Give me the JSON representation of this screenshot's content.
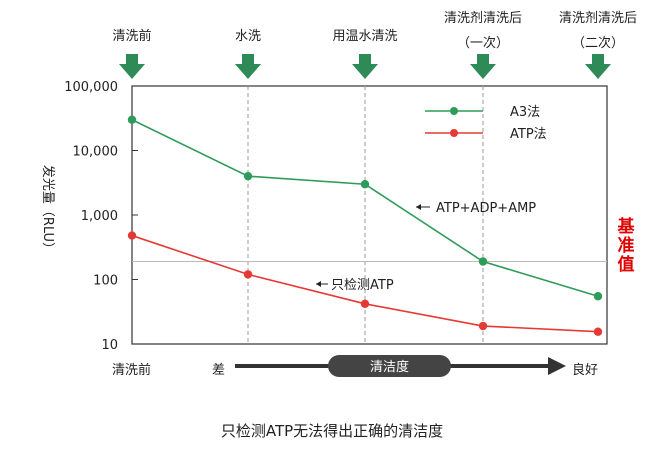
{
  "chart_data": {
    "type": "line",
    "title": "只检测ATP无法得出正确的清洁度",
    "ylabel": "发光量（RLU）",
    "yscale": "log",
    "ylim": [
      10,
      100000
    ],
    "yticks": [
      {
        "value": 100000,
        "label": "100,000"
      },
      {
        "value": 10000,
        "label": "10,000"
      },
      {
        "value": 1000,
        "label": "1,000"
      },
      {
        "value": 100,
        "label": "100"
      },
      {
        "value": 10,
        "label": "10"
      }
    ],
    "stages": [
      {
        "label": "清洗前",
        "sub": ""
      },
      {
        "label": "水洗",
        "sub": ""
      },
      {
        "label": "用温水清洗",
        "sub": ""
      },
      {
        "label": "清洗剂清洗后",
        "sub": "（一次）"
      },
      {
        "label": "清洗剂清洗后",
        "sub": "（二次）"
      }
    ],
    "series": [
      {
        "name": "A3法",
        "color": "#2e9b5a",
        "values": [
          30000,
          4000,
          3000,
          190,
          55
        ]
      },
      {
        "name": "ATP法",
        "color": "#e53935",
        "values": [
          480,
          120,
          42,
          19,
          15.5
        ]
      }
    ],
    "threshold": {
      "value": 190,
      "label": [
        "基",
        "准",
        "值"
      ],
      "color": "#e00000"
    },
    "annotations": {
      "a3": "ATP+ADP+AMP",
      "atp": "只检测ATP"
    },
    "x_axis": {
      "start_label": "清洗前",
      "bad_label": "差",
      "bar_label": "清洁度",
      "good_label": "良好"
    },
    "arrow_color": "#2e8b57"
  }
}
